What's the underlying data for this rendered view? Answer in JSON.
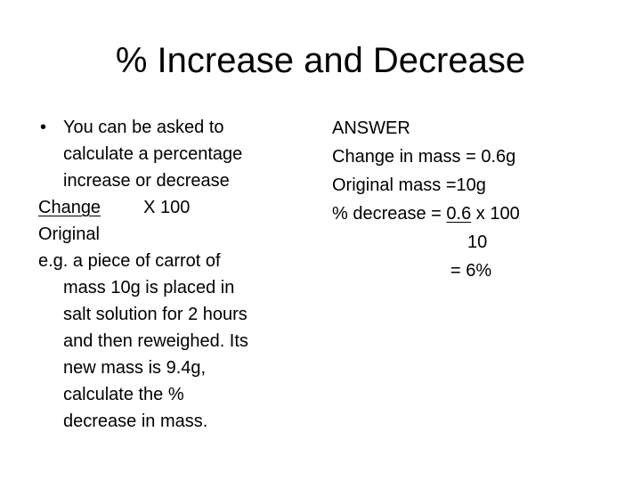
{
  "title": "% Increase and Decrease",
  "left": {
    "bullet_symbol": "•",
    "bullet_lines": [
      "You can be asked to",
      "calculate a percentage",
      "increase or decrease"
    ],
    "formula": {
      "numerator": "Change",
      "times": "X 100",
      "denominator": "Original"
    },
    "example_first_line": "e.g. a piece of carrot  of",
    "example_lines": [
      "mass 10g is placed in",
      "salt solution for 2 hours",
      "and then reweighed. Its",
      "new mass is 9.4g,",
      "calculate the %",
      "decrease in mass."
    ]
  },
  "right": {
    "heading": "ANSWER",
    "change_line": "Change in mass = 0.6g",
    "original_line": "Original mass =10g",
    "decrease_prefix": "% decrease = ",
    "decrease_value": "0.6",
    "decrease_suffix": " x 100",
    "denominator": "10",
    "result": "= 6%"
  }
}
